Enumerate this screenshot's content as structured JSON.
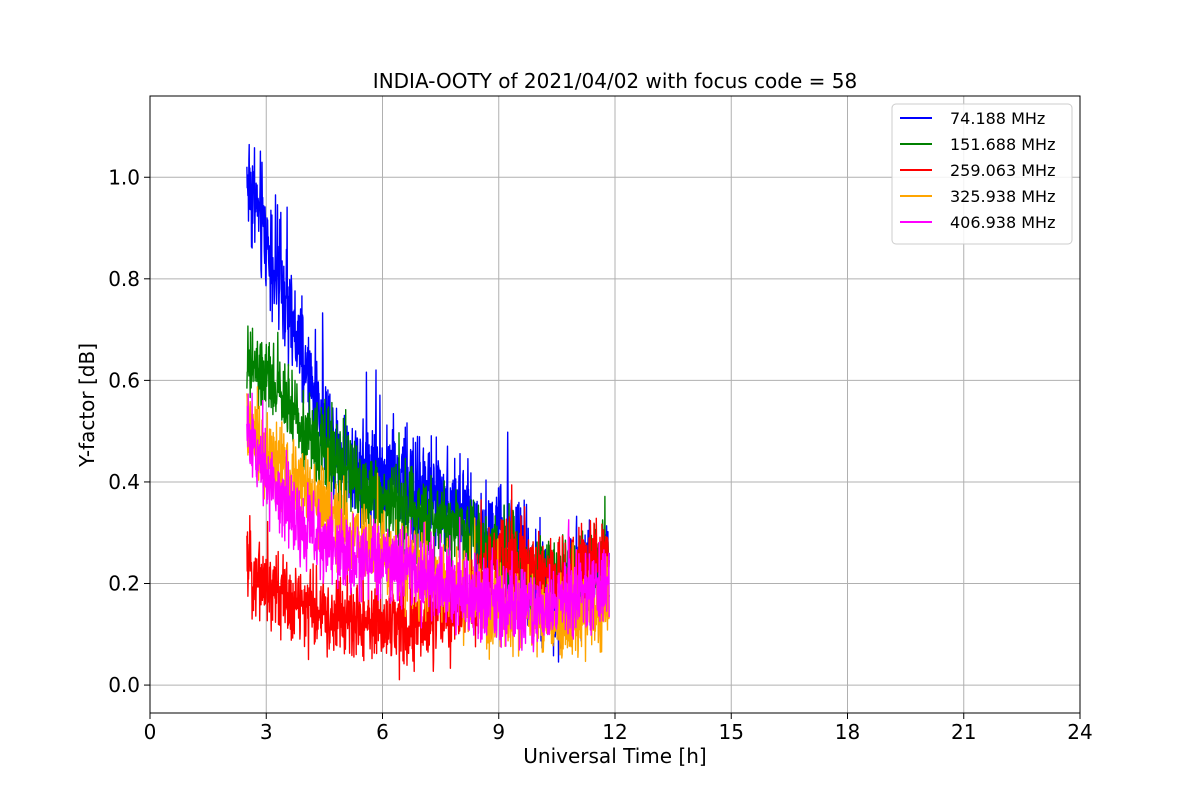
{
  "chart_data": {
    "type": "line",
    "title": "INDIA-OOTY of 2021/04/02 with focus code = 58",
    "xlabel": "Universal Time [h]",
    "ylabel": "Y-factor [dB]",
    "xlim": [
      0,
      24
    ],
    "ylim": [
      -0.055,
      1.16
    ],
    "xticks": [
      0,
      3,
      6,
      9,
      12,
      15,
      18,
      21,
      24
    ],
    "xtick_labels": [
      "0",
      "3",
      "6",
      "9",
      "12",
      "15",
      "18",
      "21",
      "24"
    ],
    "yticks": [
      0.0,
      0.2,
      0.4,
      0.6,
      0.8,
      1.0
    ],
    "ytick_labels": [
      "0.0",
      "0.2",
      "0.4",
      "0.6",
      "0.8",
      "1.0"
    ],
    "grid": true,
    "legend_position": "top-right",
    "x_range_of_data": [
      2.5,
      11.85
    ],
    "series": [
      {
        "name": " 74.188 MHz",
        "color": "#0000ff",
        "x": [
          2.5,
          3.0,
          3.5,
          4.0,
          4.5,
          5.0,
          5.5,
          6.0,
          6.5,
          7.0,
          7.5,
          8.0,
          8.5,
          9.0,
          9.5,
          10.0,
          10.5,
          11.0,
          11.5,
          11.85
        ],
        "y": [
          1.0,
          0.88,
          0.75,
          0.62,
          0.52,
          0.45,
          0.43,
          0.42,
          0.4,
          0.38,
          0.37,
          0.35,
          0.3,
          0.29,
          0.27,
          0.18,
          0.16,
          0.2,
          0.22,
          0.25
        ],
        "noise": [
          0.06,
          0.06,
          0.06,
          0.05,
          0.05,
          0.05,
          0.05,
          0.05,
          0.05,
          0.05,
          0.05,
          0.05,
          0.05,
          0.05,
          0.05,
          0.05,
          0.05,
          0.05,
          0.05,
          0.05
        ]
      },
      {
        "name": "151.688 MHz",
        "color": "#008000",
        "x": [
          2.5,
          3.0,
          3.5,
          4.0,
          4.5,
          5.0,
          5.5,
          6.0,
          6.5,
          7.0,
          7.5,
          8.0,
          8.5,
          9.0,
          9.5,
          10.0,
          10.5,
          11.0,
          11.5,
          11.85
        ],
        "y": [
          0.63,
          0.6,
          0.56,
          0.5,
          0.46,
          0.42,
          0.38,
          0.37,
          0.35,
          0.33,
          0.32,
          0.31,
          0.29,
          0.27,
          0.25,
          0.22,
          0.22,
          0.22,
          0.23,
          0.24
        ],
        "noise": [
          0.04,
          0.04,
          0.04,
          0.04,
          0.04,
          0.04,
          0.04,
          0.04,
          0.04,
          0.04,
          0.04,
          0.04,
          0.04,
          0.04,
          0.04,
          0.04,
          0.04,
          0.04,
          0.04,
          0.04
        ]
      },
      {
        "name": "259.063 MHz",
        "color": "#ff0000",
        "x": [
          2.5,
          3.0,
          3.5,
          4.0,
          4.5,
          5.0,
          5.5,
          6.0,
          6.5,
          7.0,
          7.5,
          8.0,
          8.5,
          9.0,
          9.5,
          10.0,
          10.5,
          11.0,
          11.5,
          11.85
        ],
        "y": [
          0.24,
          0.2,
          0.17,
          0.15,
          0.14,
          0.13,
          0.13,
          0.12,
          0.12,
          0.12,
          0.13,
          0.15,
          0.2,
          0.24,
          0.25,
          0.22,
          0.2,
          0.22,
          0.26,
          0.25
        ],
        "noise": [
          0.04,
          0.04,
          0.04,
          0.04,
          0.04,
          0.04,
          0.04,
          0.04,
          0.04,
          0.04,
          0.04,
          0.04,
          0.04,
          0.04,
          0.04,
          0.04,
          0.04,
          0.04,
          0.04,
          0.04
        ]
      },
      {
        "name": "325.938 MHz",
        "color": "#ffa500",
        "x": [
          2.5,
          3.0,
          3.5,
          4.0,
          4.5,
          5.0,
          5.5,
          6.0,
          6.5,
          7.0,
          7.5,
          8.0,
          8.5,
          9.0,
          9.5,
          10.0,
          10.5,
          11.0,
          11.5,
          11.85
        ],
        "y": [
          0.5,
          0.46,
          0.42,
          0.38,
          0.34,
          0.31,
          0.28,
          0.26,
          0.24,
          0.22,
          0.2,
          0.18,
          0.16,
          0.15,
          0.14,
          0.13,
          0.13,
          0.13,
          0.14,
          0.16
        ],
        "noise": [
          0.04,
          0.04,
          0.04,
          0.04,
          0.04,
          0.04,
          0.04,
          0.04,
          0.04,
          0.04,
          0.04,
          0.04,
          0.04,
          0.04,
          0.04,
          0.04,
          0.04,
          0.04,
          0.04,
          0.04
        ]
      },
      {
        "name": "406.938 MHz",
        "color": "#ff00ff",
        "x": [
          2.5,
          3.0,
          3.5,
          4.0,
          4.5,
          5.0,
          5.5,
          6.0,
          6.5,
          7.0,
          7.5,
          8.0,
          8.5,
          9.0,
          9.5,
          10.0,
          10.5,
          11.0,
          11.5,
          11.85
        ],
        "y": [
          0.5,
          0.42,
          0.36,
          0.31,
          0.28,
          0.26,
          0.25,
          0.24,
          0.23,
          0.22,
          0.2,
          0.18,
          0.17,
          0.16,
          0.15,
          0.15,
          0.16,
          0.18,
          0.19,
          0.2
        ],
        "noise": [
          0.04,
          0.04,
          0.04,
          0.04,
          0.04,
          0.04,
          0.04,
          0.04,
          0.04,
          0.04,
          0.04,
          0.04,
          0.04,
          0.04,
          0.04,
          0.04,
          0.04,
          0.04,
          0.04,
          0.04
        ]
      }
    ]
  }
}
